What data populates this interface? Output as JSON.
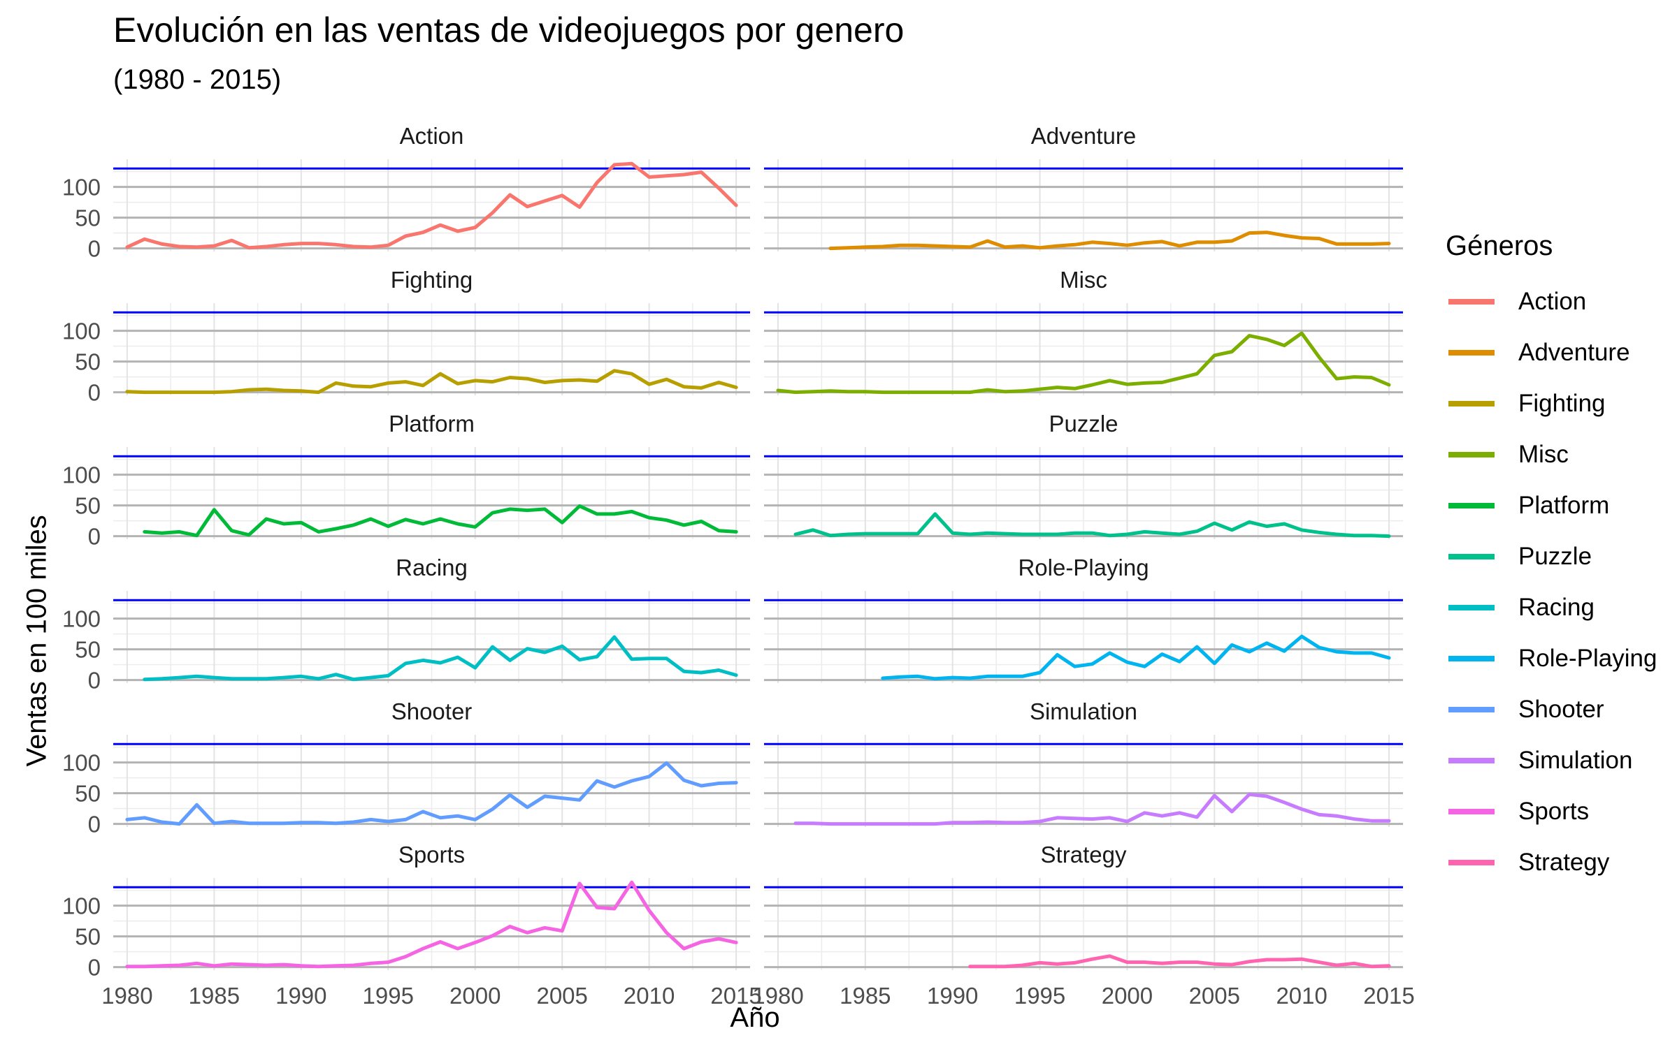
{
  "title": "Evolución en las ventas de videojuegos por genero",
  "subtitle": "(1980 - 2015)",
  "chart_data": {
    "type": "line",
    "title": "Evolución en las ventas de videojuegos por genero",
    "subtitle": "(1980 - 2015)",
    "xlabel": "Año",
    "ylabel": "Ventas en 100 miles",
    "x_ticks": [
      1980,
      1985,
      1990,
      1995,
      2000,
      2005,
      2010,
      2015
    ],
    "y_ticks": [
      0,
      50,
      100
    ],
    "xlim": [
      1979.2,
      2015.8
    ],
    "ylim": [
      -5,
      145
    ],
    "reference_line": {
      "value": 130,
      "color": "#0000ff"
    },
    "grid": true,
    "legend": {
      "title": "Géneros",
      "position": "right"
    },
    "facets": {
      "columns": 2,
      "rows": 6
    },
    "series": [
      {
        "name": "Action",
        "color": "#F8766D",
        "x": [
          1980,
          1981,
          1982,
          1983,
          1984,
          1985,
          1986,
          1987,
          1988,
          1989,
          1990,
          1991,
          1992,
          1993,
          1994,
          1995,
          1996,
          1997,
          1998,
          1999,
          2000,
          2001,
          2002,
          2003,
          2004,
          2005,
          2006,
          2007,
          2008,
          2009,
          2010,
          2011,
          2012,
          2013,
          2014,
          2015
        ],
        "y": [
          2,
          15,
          7,
          3,
          2,
          4,
          13,
          1,
          3,
          6,
          8,
          8,
          6,
          3,
          2,
          5,
          20,
          26,
          38,
          28,
          34,
          58,
          87,
          68,
          77,
          86,
          67,
          107,
          136,
          138,
          116,
          118,
          120,
          124,
          98,
          70
        ]
      },
      {
        "name": "Adventure",
        "color": "#DE8C00",
        "x": [
          1983,
          1984,
          1985,
          1986,
          1987,
          1988,
          1989,
          1990,
          1991,
          1992,
          1993,
          1994,
          1995,
          1996,
          1997,
          1998,
          1999,
          2000,
          2001,
          2002,
          2003,
          2004,
          2005,
          2006,
          2007,
          2008,
          2009,
          2010,
          2011,
          2012,
          2013,
          2014,
          2015
        ],
        "y": [
          0,
          1,
          2,
          3,
          5,
          5,
          4,
          3,
          2,
          12,
          2,
          4,
          1,
          4,
          6,
          10,
          8,
          5,
          9,
          11,
          4,
          10,
          10,
          12,
          25,
          26,
          21,
          17,
          16,
          7,
          7,
          7,
          8
        ]
      },
      {
        "name": "Fighting",
        "color": "#B79F00",
        "x": [
          1980,
          1981,
          1982,
          1983,
          1984,
          1985,
          1986,
          1987,
          1988,
          1989,
          1990,
          1991,
          1992,
          1993,
          1994,
          1995,
          1996,
          1997,
          1998,
          1999,
          2000,
          2001,
          2002,
          2003,
          2004,
          2005,
          2006,
          2007,
          2008,
          2009,
          2010,
          2011,
          2012,
          2013,
          2014,
          2015
        ],
        "y": [
          1,
          0,
          0,
          0,
          0,
          0,
          1,
          4,
          5,
          3,
          2,
          0,
          15,
          10,
          9,
          15,
          17,
          11,
          30,
          14,
          19,
          17,
          24,
          22,
          16,
          19,
          20,
          18,
          35,
          30,
          13,
          21,
          9,
          7,
          16,
          8
        ]
      },
      {
        "name": "Misc",
        "color": "#7CAE00",
        "x": [
          1980,
          1981,
          1982,
          1983,
          1984,
          1985,
          1986,
          1987,
          1988,
          1989,
          1990,
          1991,
          1992,
          1993,
          1994,
          1995,
          1996,
          1997,
          1998,
          1999,
          2000,
          2001,
          2002,
          2003,
          2004,
          2005,
          2006,
          2007,
          2008,
          2009,
          2010,
          2011,
          2012,
          2013,
          2014,
          2015
        ],
        "y": [
          3,
          0,
          1,
          2,
          1,
          1,
          0,
          0,
          0,
          0,
          0,
          0,
          4,
          1,
          2,
          5,
          8,
          6,
          12,
          19,
          13,
          15,
          16,
          23,
          30,
          60,
          66,
          92,
          86,
          76,
          96,
          57,
          22,
          25,
          24,
          12
        ]
      },
      {
        "name": "Platform",
        "color": "#00BA38",
        "x": [
          1981,
          1982,
          1983,
          1984,
          1985,
          1986,
          1987,
          1988,
          1989,
          1990,
          1991,
          1992,
          1993,
          1994,
          1995,
          1996,
          1997,
          1998,
          1999,
          2000,
          2001,
          2002,
          2003,
          2004,
          2005,
          2006,
          2007,
          2008,
          2009,
          2010,
          2011,
          2012,
          2013,
          2014,
          2015
        ],
        "y": [
          7,
          5,
          7,
          1,
          43,
          9,
          2,
          28,
          20,
          22,
          7,
          12,
          18,
          28,
          16,
          27,
          20,
          28,
          20,
          15,
          38,
          44,
          42,
          44,
          22,
          49,
          36,
          36,
          40,
          30,
          26,
          18,
          24,
          9,
          7
        ]
      },
      {
        "name": "Puzzle",
        "color": "#00C08B",
        "x": [
          1981,
          1982,
          1983,
          1984,
          1985,
          1986,
          1987,
          1988,
          1989,
          1990,
          1991,
          1992,
          1993,
          1994,
          1995,
          1996,
          1997,
          1998,
          1999,
          2000,
          2001,
          2002,
          2003,
          2004,
          2005,
          2006,
          2007,
          2008,
          2009,
          2010,
          2011,
          2012,
          2013,
          2014,
          2015
        ],
        "y": [
          3,
          10,
          1,
          3,
          4,
          4,
          4,
          4,
          36,
          5,
          3,
          5,
          4,
          3,
          3,
          3,
          5,
          5,
          1,
          3,
          7,
          5,
          3,
          8,
          21,
          10,
          23,
          16,
          20,
          10,
          6,
          3,
          1,
          1,
          0
        ]
      },
      {
        "name": "Racing",
        "color": "#00BFC4",
        "x": [
          1981,
          1982,
          1983,
          1984,
          1985,
          1986,
          1987,
          1988,
          1989,
          1990,
          1991,
          1992,
          1993,
          1994,
          1995,
          1996,
          1997,
          1998,
          1999,
          2000,
          2001,
          2002,
          2003,
          2004,
          2005,
          2006,
          2007,
          2008,
          2009,
          2010,
          2011,
          2012,
          2013,
          2014,
          2015
        ],
        "y": [
          1,
          2,
          4,
          6,
          4,
          2,
          2,
          2,
          4,
          6,
          2,
          9,
          1,
          4,
          7,
          27,
          32,
          28,
          37,
          20,
          54,
          32,
          51,
          45,
          55,
          33,
          38,
          70,
          34,
          35,
          35,
          14,
          12,
          16,
          8
        ]
      },
      {
        "name": "Role-Playing",
        "color": "#00B4F0",
        "x": [
          1986,
          1987,
          1988,
          1989,
          1990,
          1991,
          1992,
          1993,
          1994,
          1995,
          1996,
          1997,
          1998,
          1999,
          2000,
          2001,
          2002,
          2003,
          2004,
          2005,
          2006,
          2007,
          2008,
          2009,
          2010,
          2011,
          2012,
          2013,
          2014,
          2015
        ],
        "y": [
          3,
          5,
          6,
          2,
          4,
          3,
          6,
          6,
          6,
          12,
          41,
          22,
          26,
          44,
          29,
          22,
          42,
          30,
          54,
          27,
          57,
          46,
          60,
          47,
          71,
          53,
          46,
          44,
          44,
          36
        ]
      },
      {
        "name": "Shooter",
        "color": "#619CFF",
        "x": [
          1980,
          1981,
          1982,
          1983,
          1984,
          1985,
          1986,
          1987,
          1988,
          1989,
          1990,
          1991,
          1992,
          1993,
          1994,
          1995,
          1996,
          1997,
          1998,
          1999,
          2000,
          2001,
          2002,
          2003,
          2004,
          2005,
          2006,
          2007,
          2008,
          2009,
          2010,
          2011,
          2012,
          2013,
          2014,
          2015
        ],
        "y": [
          7,
          10,
          3,
          0,
          31,
          1,
          4,
          1,
          1,
          1,
          2,
          2,
          1,
          3,
          7,
          4,
          7,
          20,
          10,
          13,
          7,
          24,
          47,
          27,
          45,
          42,
          39,
          70,
          60,
          70,
          77,
          99,
          71,
          62,
          66,
          67
        ]
      },
      {
        "name": "Simulation",
        "color": "#C77CFF",
        "x": [
          1981,
          1982,
          1983,
          1984,
          1985,
          1986,
          1987,
          1988,
          1989,
          1990,
          1991,
          1992,
          1993,
          1994,
          1995,
          1996,
          1997,
          1998,
          1999,
          2000,
          2001,
          2002,
          2003,
          2004,
          2005,
          2006,
          2007,
          2008,
          2009,
          2010,
          2011,
          2012,
          2013,
          2014,
          2015
        ],
        "y": [
          1,
          1,
          0,
          0,
          0,
          0,
          0,
          0,
          0,
          2,
          2,
          3,
          2,
          2,
          4,
          10,
          9,
          8,
          10,
          4,
          18,
          13,
          18,
          11,
          46,
          20,
          48,
          45,
          35,
          24,
          15,
          13,
          8,
          5,
          5
        ]
      },
      {
        "name": "Sports",
        "color": "#F564E3",
        "x": [
          1980,
          1981,
          1982,
          1983,
          1984,
          1985,
          1986,
          1987,
          1988,
          1989,
          1990,
          1991,
          1992,
          1993,
          1994,
          1995,
          1996,
          1997,
          1998,
          1999,
          2000,
          2001,
          2002,
          2003,
          2004,
          2005,
          2006,
          2007,
          2008,
          2009,
          2010,
          2011,
          2012,
          2013,
          2014,
          2015
        ],
        "y": [
          1,
          1,
          2,
          3,
          6,
          2,
          5,
          4,
          3,
          4,
          2,
          1,
          2,
          3,
          6,
          8,
          17,
          30,
          41,
          30,
          40,
          51,
          66,
          56,
          64,
          59,
          136,
          97,
          95,
          138,
          92,
          56,
          30,
          41,
          46,
          40
        ]
      },
      {
        "name": "Strategy",
        "color": "#FF64B0",
        "x": [
          1991,
          1992,
          1993,
          1994,
          1995,
          1996,
          1997,
          1998,
          1999,
          2000,
          2001,
          2002,
          2003,
          2004,
          2005,
          2006,
          2007,
          2008,
          2009,
          2010,
          2011,
          2012,
          2013,
          2014,
          2015
        ],
        "y": [
          1,
          1,
          1,
          3,
          7,
          5,
          7,
          13,
          18,
          8,
          8,
          6,
          8,
          8,
          5,
          4,
          9,
          12,
          12,
          13,
          8,
          3,
          6,
          1,
          2
        ]
      }
    ]
  }
}
